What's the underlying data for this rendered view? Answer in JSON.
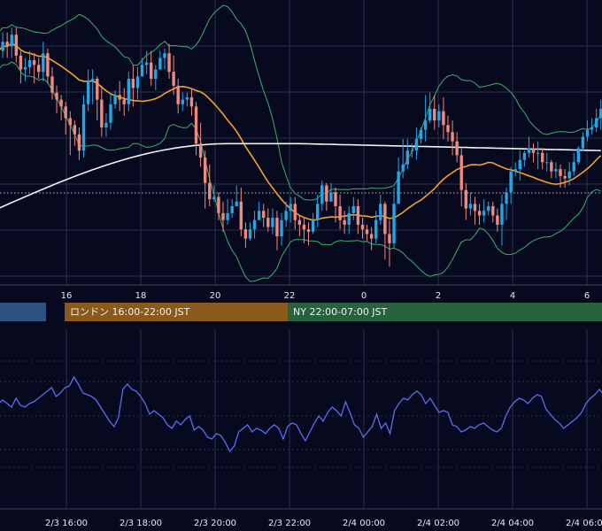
{
  "chart_data": [
    {
      "type": "candlestick",
      "title": "",
      "x_ticks": [
        "16",
        "18",
        "20",
        "22",
        "0",
        "2",
        "4",
        "6"
      ],
      "overlays": [
        "bollinger-bands",
        "moving-average-orange",
        "moving-average-white",
        "dotted-reference-line"
      ],
      "colors": {
        "up": "#26a5e4",
        "down": "#ef8a80",
        "bollinger": "#3fae6a",
        "ma_short": "#f5a02d",
        "ma_long": "#f2f2f2",
        "grid": "#27304a"
      },
      "candles": [
        [
          0,
          161,
          163,
          174,
          160
        ],
        [
          1,
          163,
          167,
          171,
          160
        ],
        [
          2,
          167,
          165,
          171,
          160
        ],
        [
          3,
          165,
          170,
          173,
          160
        ],
        [
          4,
          170,
          161,
          173,
          158
        ],
        [
          5,
          161,
          155,
          163,
          149
        ],
        [
          6,
          155,
          156,
          160,
          150
        ],
        [
          7,
          156,
          159,
          163,
          153
        ],
        [
          8,
          159,
          157,
          162,
          149
        ],
        [
          9,
          157,
          154,
          160,
          151
        ],
        [
          10,
          154,
          162,
          167,
          150
        ],
        [
          11,
          162,
          152,
          164,
          149
        ],
        [
          12,
          152,
          145,
          156,
          142
        ],
        [
          13,
          145,
          142,
          148,
          136
        ],
        [
          14,
          142,
          139,
          144,
          133
        ],
        [
          15,
          139,
          134,
          141,
          127
        ],
        [
          16,
          134,
          131,
          137,
          118
        ],
        [
          17,
          131,
          127,
          133,
          122
        ],
        [
          18,
          127,
          120,
          130,
          116
        ],
        [
          19,
          120,
          140,
          144,
          117
        ],
        [
          20,
          140,
          150,
          155,
          137
        ],
        [
          21,
          150,
          151,
          155,
          140
        ],
        [
          22,
          151,
          142,
          152,
          133
        ],
        [
          23,
          142,
          130,
          148,
          126
        ],
        [
          24,
          130,
          132,
          136,
          126
        ],
        [
          25,
          132,
          140,
          145,
          129
        ],
        [
          26,
          140,
          144,
          146,
          138
        ],
        [
          27,
          144,
          142,
          150,
          137
        ],
        [
          28,
          142,
          140,
          147,
          135
        ],
        [
          29,
          140,
          151,
          154,
          137
        ],
        [
          30,
          151,
          147,
          157,
          139
        ],
        [
          31,
          147,
          152,
          156,
          142
        ],
        [
          32,
          152,
          157,
          160,
          152
        ],
        [
          33,
          157,
          158,
          163,
          153
        ],
        [
          34,
          158,
          151,
          163,
          148
        ],
        [
          35,
          151,
          155,
          157,
          146
        ],
        [
          36,
          155,
          160,
          163,
          155
        ],
        [
          37,
          160,
          162,
          164,
          155
        ],
        [
          38,
          162,
          154,
          166,
          151
        ],
        [
          39,
          154,
          148,
          161,
          144
        ],
        [
          40,
          148,
          140,
          151,
          136
        ],
        [
          41,
          140,
          142,
          145,
          137
        ],
        [
          42,
          142,
          143,
          145,
          139
        ],
        [
          43,
          143,
          139,
          147,
          135
        ],
        [
          44,
          139,
          123,
          141,
          118
        ],
        [
          45,
          123,
          117,
          132,
          113
        ],
        [
          46,
          117,
          106,
          120,
          95
        ],
        [
          47,
          106,
          99,
          114,
          96
        ],
        [
          48,
          99,
          100,
          105,
          98
        ],
        [
          49,
          100,
          93,
          102,
          90
        ],
        [
          50,
          93,
          90,
          98,
          85
        ],
        [
          51,
          90,
          93,
          99,
          88
        ],
        [
          52,
          93,
          96,
          99,
          91
        ],
        [
          53,
          96,
          98,
          105,
          96
        ],
        [
          54,
          98,
          86,
          104,
          83
        ],
        [
          55,
          86,
          82,
          89,
          78
        ],
        [
          56,
          82,
          86,
          89,
          81
        ],
        [
          57,
          86,
          90,
          94,
          82
        ],
        [
          58,
          90,
          94,
          98,
          90
        ],
        [
          59,
          94,
          91,
          97,
          87
        ],
        [
          60,
          91,
          87,
          95,
          85
        ],
        [
          61,
          87,
          91,
          95,
          84
        ],
        [
          62,
          91,
          83,
          94,
          77
        ],
        [
          63,
          83,
          90,
          93,
          79
        ],
        [
          64,
          90,
          94,
          98,
          87
        ],
        [
          65,
          94,
          97,
          100,
          89
        ],
        [
          66,
          97,
          90,
          100,
          86
        ],
        [
          67,
          90,
          88,
          92,
          83
        ],
        [
          68,
          88,
          86,
          91,
          80
        ],
        [
          69,
          86,
          85,
          89,
          79
        ],
        [
          70,
          85,
          90,
          93,
          84
        ],
        [
          71,
          90,
          97,
          101,
          87
        ],
        [
          72,
          97,
          105,
          107,
          94
        ],
        [
          73,
          105,
          98,
          106,
          94
        ],
        [
          74,
          98,
          102,
          106,
          98
        ],
        [
          75,
          102,
          96,
          104,
          89
        ],
        [
          76,
          96,
          90,
          101,
          86
        ],
        [
          77,
          90,
          88,
          94,
          84
        ],
        [
          78,
          88,
          93,
          96,
          84
        ],
        [
          79,
          93,
          96,
          100,
          90
        ],
        [
          80,
          96,
          88,
          99,
          84
        ],
        [
          81,
          88,
          86,
          91,
          82
        ],
        [
          82,
          86,
          84,
          88,
          81
        ],
        [
          83,
          84,
          82,
          87,
          77
        ],
        [
          84,
          82,
          90,
          94,
          80
        ],
        [
          85,
          90,
          97,
          101,
          88
        ],
        [
          86,
          97,
          84,
          98,
          73
        ],
        [
          87,
          84,
          80,
          90,
          70
        ],
        [
          88,
          80,
          97,
          104,
          78
        ],
        [
          89,
          97,
          111,
          117,
          97
        ],
        [
          90,
          111,
          114,
          125,
          108
        ],
        [
          91,
          114,
          120,
          125,
          112
        ],
        [
          92,
          120,
          120,
          123,
          117
        ],
        [
          93,
          120,
          125,
          130,
          116
        ],
        [
          94,
          125,
          129,
          130,
          123
        ],
        [
          95,
          129,
          133,
          144,
          124
        ],
        [
          96,
          133,
          138,
          145,
          132
        ],
        [
          97,
          138,
          133,
          144,
          129
        ],
        [
          98,
          133,
          137,
          140,
          130
        ],
        [
          99,
          137,
          131,
          143,
          125
        ],
        [
          100,
          131,
          128,
          135,
          124
        ],
        [
          101,
          128,
          124,
          133,
          118
        ],
        [
          102,
          124,
          118,
          128,
          115
        ],
        [
          103,
          118,
          103,
          121,
          96
        ],
        [
          104,
          103,
          95,
          106,
          90
        ],
        [
          105,
          95,
          97,
          102,
          92
        ],
        [
          106,
          97,
          94,
          100,
          88
        ],
        [
          107,
          94,
          92,
          97,
          88
        ],
        [
          108,
          92,
          94,
          99,
          89
        ],
        [
          109,
          94,
          96,
          98,
          92
        ],
        [
          110,
          96,
          92,
          98,
          89
        ],
        [
          111,
          92,
          88,
          95,
          85
        ],
        [
          112,
          88,
          97,
          101,
          79
        ],
        [
          113,
          97,
          102,
          104,
          90
        ],
        [
          114,
          102,
          111,
          113,
          97
        ],
        [
          115,
          111,
          112,
          115,
          109
        ],
        [
          116,
          112,
          116,
          120,
          107
        ],
        [
          117,
          116,
          119,
          120,
          113
        ],
        [
          118,
          119,
          121,
          126,
          117
        ],
        [
          119,
          121,
          119,
          123,
          115
        ],
        [
          120,
          119,
          119,
          124,
          112
        ],
        [
          121,
          119,
          115,
          121,
          112
        ],
        [
          122,
          115,
          115,
          119,
          111
        ],
        [
          123,
          115,
          111,
          116,
          108
        ],
        [
          124,
          111,
          112,
          115,
          108
        ],
        [
          125,
          112,
          109,
          114,
          104
        ],
        [
          126,
          109,
          108,
          112,
          104
        ],
        [
          127,
          108,
          111,
          115,
          105
        ],
        [
          128,
          111,
          115,
          119,
          109
        ],
        [
          129,
          115,
          121,
          122,
          114
        ],
        [
          130,
          121,
          126,
          128,
          120
        ],
        [
          131,
          126,
          129,
          133,
          124
        ],
        [
          132,
          129,
          130,
          134,
          127
        ],
        [
          133,
          130,
          134,
          138,
          128
        ],
        [
          134,
          134,
          138,
          142,
          129
        ]
      ],
      "candle_range": [
        70,
        180
      ],
      "price_range": [
        62,
        185
      ]
    },
    {
      "type": "line",
      "title": "",
      "series_color": "#5a6cf0",
      "x_ticks": [
        "2/3 16:00",
        "2/3 18:00",
        "2/3 20:00",
        "2/3 22:00",
        "2/4 00:00",
        "2/4 02:00",
        "2/4 04:00",
        "2/4 06:00"
      ],
      "y_range": [
        0,
        100
      ],
      "values": [
        52,
        54,
        52,
        50,
        55,
        51,
        50,
        52,
        53,
        55,
        57,
        59,
        61,
        56,
        58,
        61,
        62,
        67,
        63,
        58,
        57,
        56,
        54,
        50,
        46,
        42,
        39,
        44,
        60,
        63,
        60,
        59,
        56,
        52,
        46,
        48,
        46,
        44,
        40,
        38,
        42,
        40,
        43,
        45,
        37,
        39,
        37,
        33,
        32,
        35,
        34,
        30,
        25,
        28,
        36,
        38,
        40,
        36,
        38,
        37,
        35,
        38,
        40,
        38,
        32,
        39,
        41,
        40,
        35,
        31,
        36,
        41,
        45,
        42,
        47,
        50,
        48,
        45,
        53,
        47,
        40,
        38,
        33,
        36,
        39,
        46,
        38,
        41,
        35,
        48,
        52,
        55,
        54,
        57,
        59,
        57,
        52,
        55,
        51,
        47,
        48,
        47,
        40,
        39,
        36,
        37,
        39,
        38,
        40,
        41,
        39,
        37,
        36,
        38,
        45,
        50,
        53,
        55,
        54,
        52,
        55,
        57,
        56,
        49,
        46,
        43,
        41,
        38,
        40,
        42,
        44,
        47,
        52,
        55,
        57,
        60,
        57
      ]
    }
  ],
  "sessions": [
    {
      "label": "",
      "color": "#2c5282"
    },
    {
      "label": "ロンドン 16:00-22:00 JST",
      "color": "#8a5a1c"
    },
    {
      "label": "NY 22:00-07:00 JST",
      "color": "#27623d"
    }
  ]
}
